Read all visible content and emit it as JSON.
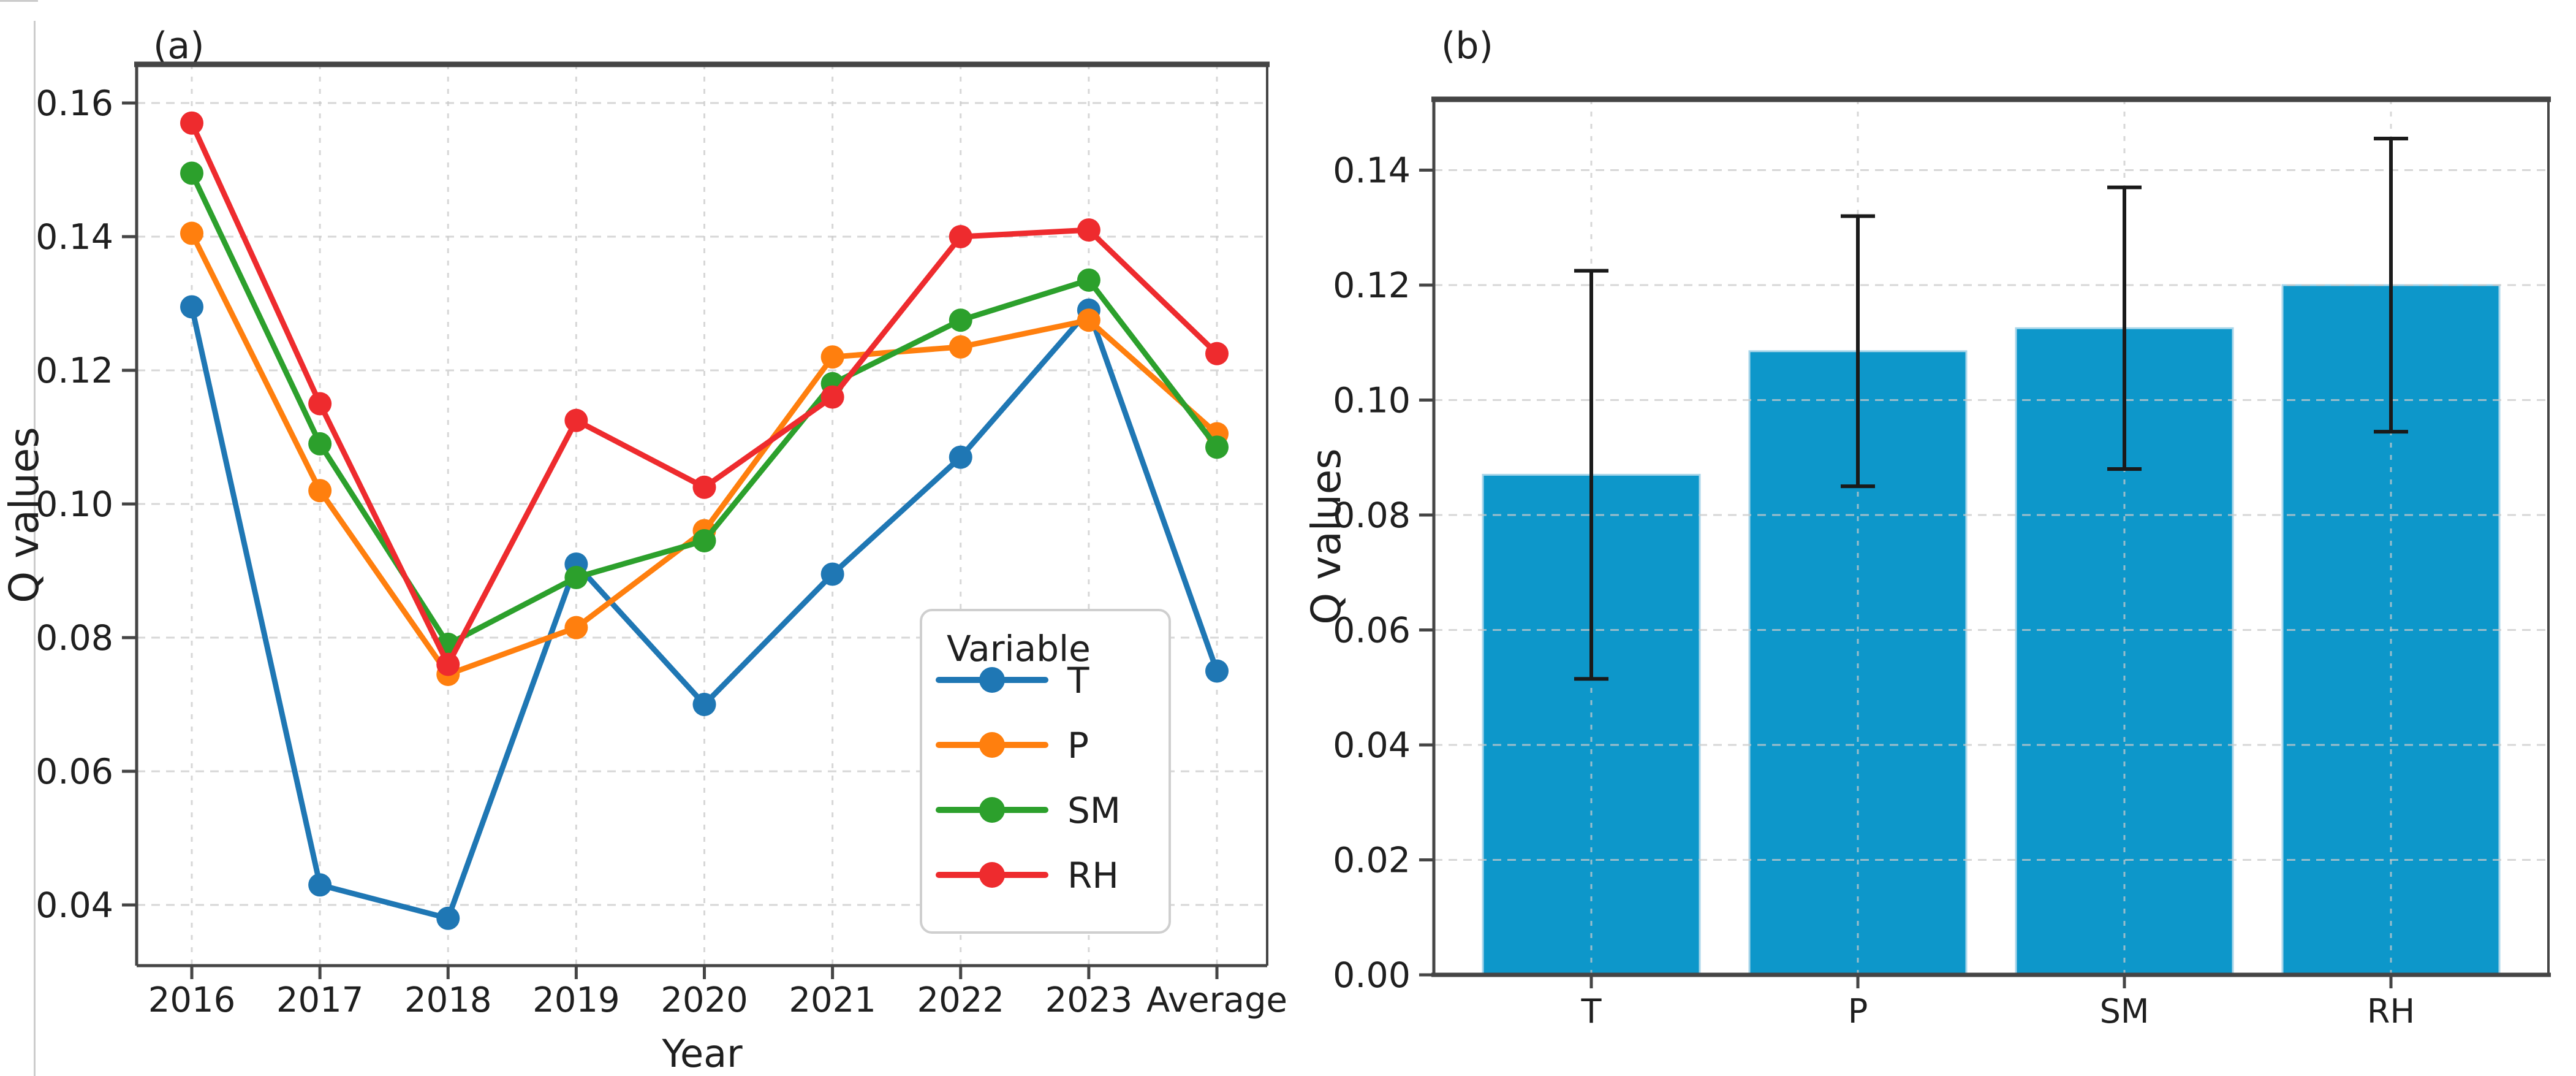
{
  "figure": {
    "background": "#ffffff",
    "panel_a_label": "(a)",
    "panel_b_label": "(b)"
  },
  "colors": {
    "T": "#1f77b4",
    "P": "#ff7f0e",
    "SM": "#2ca02c",
    "RH": "#ee2b2e",
    "bar_fill": "#0d97ca",
    "bar_edge": "#a9d6ea",
    "error_bar": "#1a1a1a",
    "grid": "#c9c9c9",
    "spine": "#454545",
    "text": "#1f1f1f"
  },
  "chart_data": [
    {
      "type": "line",
      "panel": "(a)",
      "title": "",
      "xlabel": "Year",
      "ylabel": "Q values",
      "categories": [
        "2016",
        "2017",
        "2018",
        "2019",
        "2020",
        "2021",
        "2022",
        "2023",
        "Average"
      ],
      "series": [
        {
          "name": "T",
          "color": "#1f77b4",
          "values": [
            0.1295,
            0.043,
            0.038,
            0.091,
            0.07,
            0.0895,
            0.107,
            0.129,
            0.075
          ]
        },
        {
          "name": "P",
          "color": "#ff7f0e",
          "values": [
            0.1405,
            0.102,
            0.0745,
            0.0815,
            0.096,
            0.122,
            0.1235,
            0.1275,
            0.1105
          ]
        },
        {
          "name": "SM",
          "color": "#2ca02c",
          "values": [
            0.1495,
            0.109,
            0.079,
            0.089,
            0.0945,
            0.118,
            0.1275,
            0.1335,
            0.1085
          ]
        },
        {
          "name": "RH",
          "color": "#ee2b2e",
          "values": [
            0.157,
            0.115,
            0.076,
            0.1125,
            0.1025,
            0.116,
            0.14,
            0.141,
            0.1225
          ]
        }
      ],
      "legend_title": "Variable",
      "legend_entries": [
        "T",
        "P",
        "SM",
        "RH"
      ],
      "legend_position": "lower right",
      "yticks": [
        0.04,
        0.06,
        0.08,
        0.1,
        0.12,
        0.14,
        0.16
      ],
      "ytick_labels": [
        "0.04",
        "0.06",
        "0.08",
        "0.10",
        "0.12",
        "0.14",
        "0.16"
      ],
      "ylim": [
        0.031,
        0.166
      ],
      "grid": true
    },
    {
      "type": "bar",
      "panel": "(b)",
      "title": "",
      "xlabel": "",
      "ylabel": "Q values",
      "categories": [
        "T",
        "P",
        "SM",
        "RH"
      ],
      "values": [
        0.087,
        0.1085,
        0.1125,
        0.12
      ],
      "errors": [
        0.0355,
        0.0235,
        0.0245,
        0.0255
      ],
      "error_low": [
        0.0515,
        0.085,
        0.088,
        0.0945
      ],
      "error_high": [
        0.1225,
        0.132,
        0.137,
        0.1455
      ],
      "yticks": [
        0.0,
        0.02,
        0.04,
        0.06,
        0.08,
        0.1,
        0.12,
        0.14
      ],
      "ytick_labels": [
        "0.00",
        "0.02",
        "0.04",
        "0.06",
        "0.08",
        "0.10",
        "0.12",
        "0.14"
      ],
      "ylim": [
        0.0,
        0.1523
      ],
      "grid": true,
      "legend_position": "none"
    }
  ]
}
